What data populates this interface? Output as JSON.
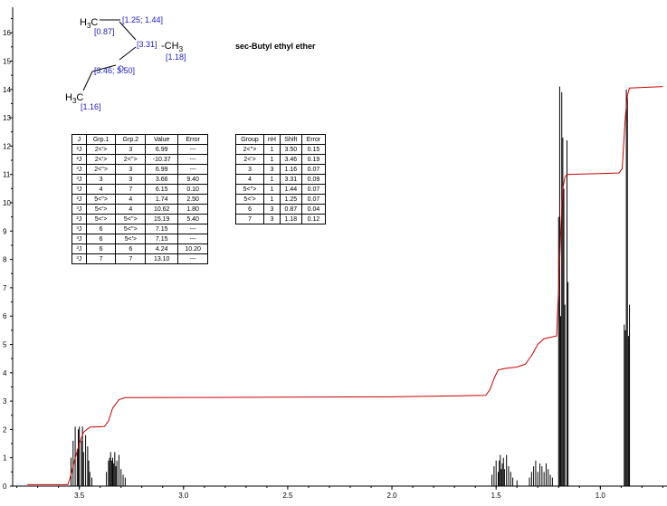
{
  "chart_data": {
    "type": "nmr_spectrum",
    "title": "sec-Butyl ethyl ether",
    "x_ticks": [
      "3.5",
      "3.0",
      "2.5",
      "2.0",
      "1.5",
      "1.0"
    ],
    "y_ticks": [
      "0",
      "1",
      "2",
      "3",
      "4",
      "5",
      "6",
      "7",
      "8",
      "9",
      "10",
      "11",
      "12",
      "13",
      "14",
      "15",
      "16"
    ],
    "xlim": [
      3.82,
      0.68
    ],
    "ylim": [
      0,
      16.9
    ],
    "integral_color": "#cc0000",
    "peak_color": "#000000",
    "peaks": [
      [
        3.54,
        1.0
      ],
      [
        3.53,
        1.6
      ],
      [
        3.52,
        2.1
      ],
      [
        3.51,
        1.3
      ],
      [
        3.505,
        2.0
      ],
      [
        3.5,
        2.1
      ],
      [
        3.49,
        1.6
      ],
      [
        3.485,
        2.1
      ],
      [
        3.48,
        1.2
      ],
      [
        3.47,
        1.8
      ],
      [
        3.46,
        1.4
      ],
      [
        3.455,
        0.9
      ],
      [
        3.45,
        0.5
      ],
      [
        3.44,
        0.3
      ],
      [
        3.37,
        0.5
      ],
      [
        3.36,
        0.9
      ],
      [
        3.355,
        1.0
      ],
      [
        3.35,
        1.2
      ],
      [
        3.345,
        0.9
      ],
      [
        3.34,
        1.0
      ],
      [
        3.335,
        0.8
      ],
      [
        3.33,
        1.2
      ],
      [
        3.325,
        0.7
      ],
      [
        3.32,
        0.9
      ],
      [
        3.31,
        1.1
      ],
      [
        3.3,
        0.6
      ],
      [
        3.29,
        0.4
      ],
      [
        3.28,
        0.3
      ],
      [
        1.52,
        0.4
      ],
      [
        1.51,
        0.7
      ],
      [
        1.5,
        0.9
      ],
      [
        1.49,
        0.5
      ],
      [
        1.485,
        0.9
      ],
      [
        1.48,
        1.1
      ],
      [
        1.475,
        0.6
      ],
      [
        1.47,
        0.8
      ],
      [
        1.465,
        1.0
      ],
      [
        1.46,
        0.6
      ],
      [
        1.45,
        1.1
      ],
      [
        1.44,
        0.7
      ],
      [
        1.43,
        0.5
      ],
      [
        1.42,
        0.3
      ],
      [
        1.4,
        0.2
      ],
      [
        1.34,
        0.3
      ],
      [
        1.33,
        0.5
      ],
      [
        1.32,
        0.7
      ],
      [
        1.31,
        0.9
      ],
      [
        1.3,
        0.5
      ],
      [
        1.29,
        0.8
      ],
      [
        1.28,
        0.7
      ],
      [
        1.27,
        0.5
      ],
      [
        1.26,
        0.8
      ],
      [
        1.25,
        0.6
      ],
      [
        1.24,
        0.4
      ],
      [
        1.23,
        0.3
      ],
      [
        1.2,
        9.5
      ],
      [
        1.195,
        14.1
      ],
      [
        1.19,
        6.0
      ],
      [
        1.185,
        13.9
      ],
      [
        1.18,
        12.3
      ],
      [
        1.175,
        10.5
      ],
      [
        1.17,
        6.4
      ],
      [
        1.16,
        12.2
      ],
      [
        1.155,
        7.2
      ],
      [
        0.885,
        5.7
      ],
      [
        0.88,
        5.5
      ],
      [
        0.875,
        14.0
      ],
      [
        0.87,
        13.7
      ],
      [
        0.865,
        5.3
      ],
      [
        0.86,
        6.4
      ]
    ],
    "integral": [
      [
        3.75,
        0.05
      ],
      [
        3.555,
        0.05
      ],
      [
        3.54,
        0.4
      ],
      [
        3.52,
        1.0
      ],
      [
        3.5,
        1.5
      ],
      [
        3.48,
        1.9
      ],
      [
        3.45,
        2.08
      ],
      [
        3.38,
        2.1
      ],
      [
        3.36,
        2.3
      ],
      [
        3.34,
        2.75
      ],
      [
        3.31,
        3.05
      ],
      [
        3.28,
        3.12
      ],
      [
        2.0,
        3.15
      ],
      [
        1.55,
        3.2
      ],
      [
        1.53,
        3.4
      ],
      [
        1.51,
        3.8
      ],
      [
        1.49,
        4.1
      ],
      [
        1.46,
        4.15
      ],
      [
        1.4,
        4.2
      ],
      [
        1.36,
        4.3
      ],
      [
        1.33,
        4.6
      ],
      [
        1.3,
        5.0
      ],
      [
        1.27,
        5.2
      ],
      [
        1.21,
        5.3
      ],
      [
        1.2,
        7.0
      ],
      [
        1.19,
        9.0
      ],
      [
        1.18,
        10.5
      ],
      [
        1.17,
        10.9
      ],
      [
        1.16,
        11.0
      ],
      [
        0.91,
        11.05
      ],
      [
        0.895,
        11.2
      ],
      [
        0.88,
        13.0
      ],
      [
        0.87,
        13.8
      ],
      [
        0.86,
        14.05
      ],
      [
        0.7,
        14.1
      ]
    ]
  },
  "molecule": {
    "h3c_left": "H",
    "h3c_left_sub": "3",
    "h3c_left_c": "C",
    "shift_1": "[1.25; 1.44]",
    "shift_2": "[0.87]",
    "shift_3": "[3.31]",
    "ch3_right": "-CH",
    "ch3_right_sub": "3",
    "shift_4": "[1.18]",
    "oxygen": "O",
    "shift_5": "[3.46; 3.50]",
    "h3c_bottom": "H",
    "h3c_bottom_sub": "3",
    "h3c_bottom_c": "C",
    "shift_6": "[1.16]"
  },
  "coupling_table": {
    "headers": [
      "J",
      "Grp.1",
      "Grp.2",
      "Value",
      "Error"
    ],
    "rows": [
      [
        "²J",
        "2<'>",
        "3",
        "6.99",
        "---"
      ],
      [
        "²J",
        "2<'>",
        "2<''>",
        "-10.37",
        "---"
      ],
      [
        "³J",
        "2<''>",
        "3",
        "6.99",
        "---"
      ],
      [
        "³J",
        "3",
        "3",
        "3.66",
        "9.40"
      ],
      [
        "³J",
        "4",
        "7",
        "6.15",
        "0.10"
      ],
      [
        "²J",
        "5<''>",
        "4",
        "1.74",
        "2.50"
      ],
      [
        "³J",
        "5<'>",
        "4",
        "10.62",
        "1.80"
      ],
      [
        "²J",
        "5<'>",
        "5<''>",
        "15.19",
        "5.40"
      ],
      [
        "³J",
        "6",
        "5<''>",
        "7.15",
        "---"
      ],
      [
        "³J",
        "6",
        "5<'>",
        "7.15",
        "---"
      ],
      [
        "³J",
        "6",
        "6",
        "4.24",
        "10.20"
      ],
      [
        "³J",
        "7",
        "7",
        "13.10",
        "---"
      ]
    ]
  },
  "shift_table": {
    "headers": [
      "Group",
      "nH",
      "Shift",
      "Error"
    ],
    "rows": [
      [
        "2<''>",
        "1",
        "3.50",
        "0.15"
      ],
      [
        "2<'>",
        "1",
        "3.46",
        "0.19"
      ],
      [
        "3",
        "3",
        "1.16",
        "0.07"
      ],
      [
        "4",
        "1",
        "3.31",
        "0.09"
      ],
      [
        "5<''>",
        "1",
        "1.44",
        "0.07"
      ],
      [
        "5<'>",
        "1",
        "1.25",
        "0.07"
      ],
      [
        "6",
        "3",
        "0.87",
        "0.04"
      ],
      [
        "7",
        "3",
        "1.18",
        "0.12"
      ]
    ]
  }
}
